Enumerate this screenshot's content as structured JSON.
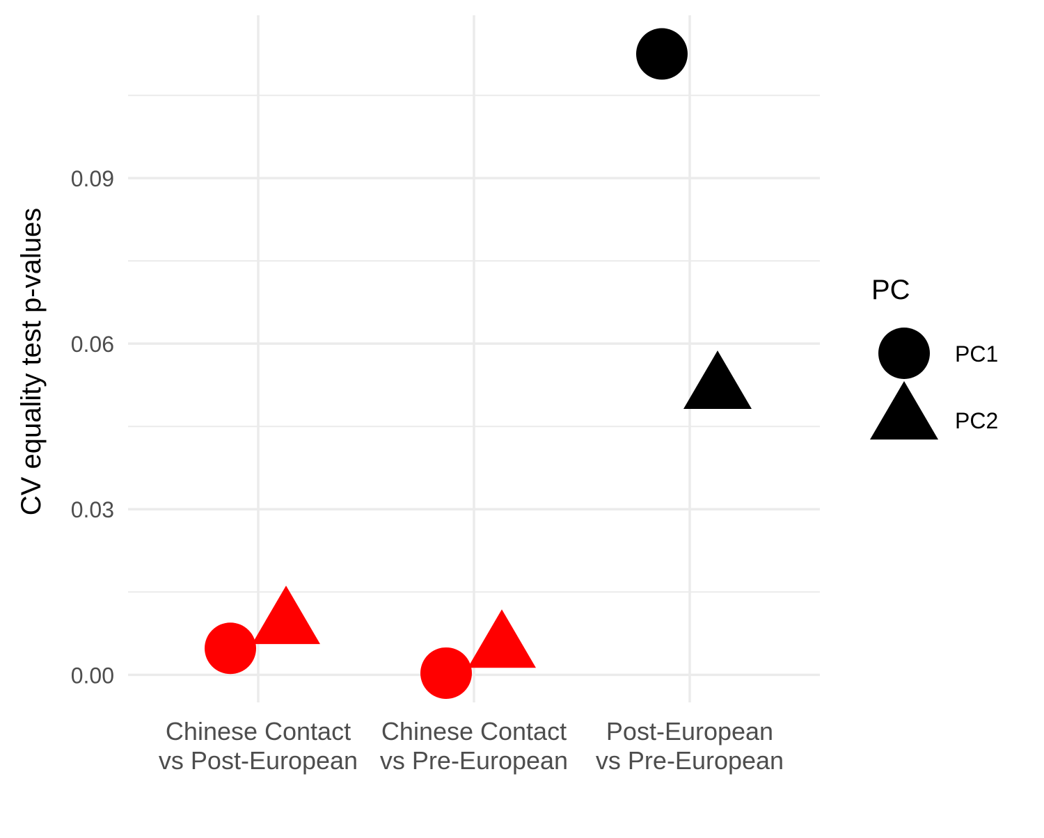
{
  "chart_data": {
    "type": "scatter",
    "title": "",
    "xlabel": "",
    "ylabel": "CV equality test p-values",
    "categories": [
      [
        "Chinese Contact",
        "vs Post-European"
      ],
      [
        "Chinese Contact",
        "vs Pre-European"
      ],
      [
        "Post-European",
        "vs Pre-European"
      ]
    ],
    "y_ticks": [
      "0.00",
      "0.03",
      "0.06",
      "0.09"
    ],
    "ylim": [
      -0.005,
      0.1195
    ],
    "grid": true,
    "legend": {
      "title": "PC",
      "placement": "right",
      "entries": [
        {
          "name": "PC1",
          "shape": "circle"
        },
        {
          "name": "PC2",
          "shape": "triangle"
        }
      ]
    },
    "colors": {
      "significant": "#ff0000",
      "not_significant": "#000000",
      "grid": "#ebebeb",
      "tick_label": "#4d4d4d"
    },
    "series": [
      {
        "name": "PC1",
        "shape": "circle",
        "points": [
          {
            "category": 0,
            "value": 0.0048,
            "color": "#ff0000"
          },
          {
            "category": 1,
            "value": 0.0003,
            "color": "#ff0000"
          },
          {
            "category": 2,
            "value": 0.1125,
            "color": "#000000"
          }
        ]
      },
      {
        "name": "PC2",
        "shape": "triangle",
        "points": [
          {
            "category": 0,
            "value": 0.0091,
            "color": "#ff0000"
          },
          {
            "category": 1,
            "value": 0.0048,
            "color": "#ff0000"
          },
          {
            "category": 2,
            "value": 0.0517,
            "color": "#000000"
          }
        ]
      }
    ]
  }
}
